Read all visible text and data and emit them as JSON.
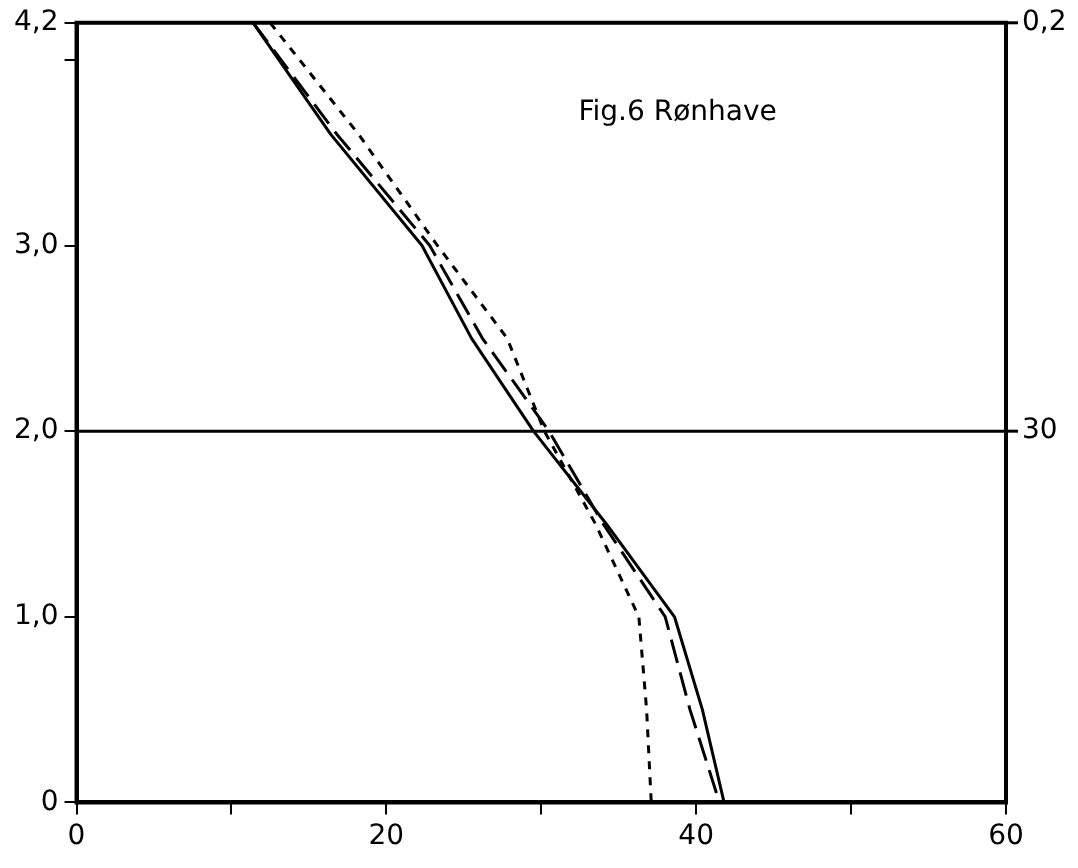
{
  "chart_data": {
    "type": "line",
    "annotations": [
      "Fig.6 Rønhave",
      "0,2",
      "30"
    ],
    "series": [
      {
        "color": "#000000",
        "line_style": "solid",
        "x": [
          11.4,
          16.4,
          22.3,
          25.5,
          29.5,
          34.2,
          38.6,
          40.4,
          41.8
        ],
        "values": [
          4.2,
          3.6,
          3.0,
          2.5,
          2.0,
          1.5,
          1.0,
          0.5,
          0
        ]
      },
      {
        "color": "#000000",
        "line_style": "dashed",
        "x": [
          11.4,
          16.8,
          22.8,
          26.2,
          30.5,
          34.0,
          38.0,
          39.6,
          41.5
        ],
        "values": [
          4.2,
          3.6,
          3.0,
          2.5,
          2.0,
          1.5,
          1.0,
          0.5,
          0
        ]
      },
      {
        "color": "#000000",
        "line_style": "dotted",
        "x": [
          12.5,
          18.2,
          23.3,
          27.8,
          30.2,
          33.5,
          36.3,
          36.8,
          37.1
        ],
        "values": [
          4.2,
          3.6,
          3.0,
          2.5,
          2.0,
          1.5,
          1.0,
          0.5,
          0
        ]
      }
    ],
    "xlim": [
      0,
      60
    ],
    "xticks": [
      0,
      {
        "value": 10,
        "label": null
      },
      20,
      {
        "value": 30,
        "label": null
      },
      40,
      {
        "value": 50,
        "label": null
      },
      60
    ],
    "ylim": [
      0,
      4.2
    ],
    "yticks": [
      0,
      {
        "value": 1,
        "label": "1,0"
      },
      {
        "value": 2,
        "label": "2,0"
      },
      {
        "value": 3,
        "label": "3,0"
      },
      {
        "value": 4,
        "label": null
      },
      {
        "value": 4.2,
        "label": "4,2"
      }
    ],
    "ref_lines": [
      {
        "axis": "y",
        "value": 2,
        "color": "#000000"
      }
    ],
    "grid": false,
    "legend": false,
    "marker": "none"
  }
}
